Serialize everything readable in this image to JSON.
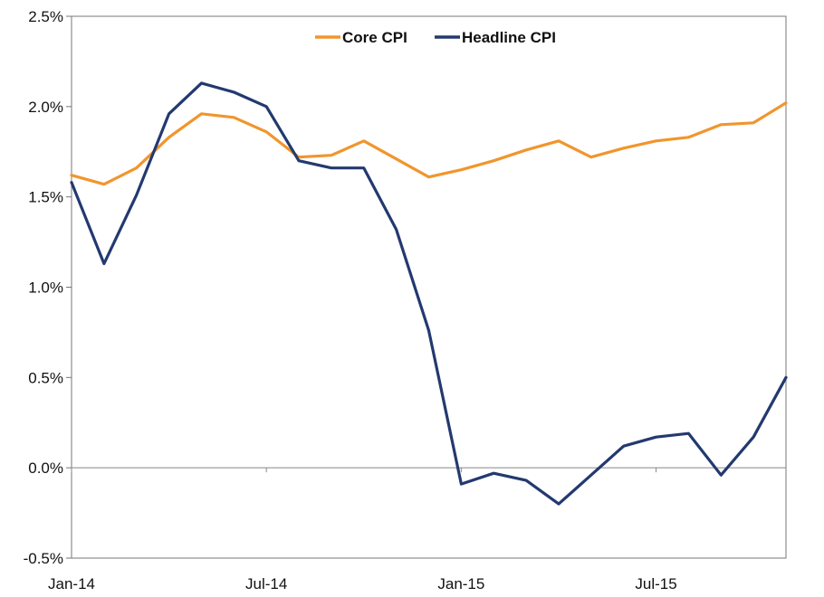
{
  "chart_data": {
    "type": "line",
    "title": "",
    "xlabel": "",
    "ylabel": "",
    "ylim": [
      -0.5,
      2.5
    ],
    "y_ticks": [
      "2.5%",
      "2.0%",
      "1.5%",
      "1.0%",
      "0.5%",
      "0.0%",
      "-0.5%"
    ],
    "y_tick_values": [
      2.5,
      2.0,
      1.5,
      1.0,
      0.5,
      0.0,
      -0.5
    ],
    "x": [
      "Jan-14",
      "Feb-14",
      "Mar-14",
      "Apr-14",
      "May-14",
      "Jun-14",
      "Jul-14",
      "Aug-14",
      "Sep-14",
      "Oct-14",
      "Nov-14",
      "Dec-14",
      "Jan-15",
      "Feb-15",
      "Mar-15",
      "Apr-15",
      "May-15",
      "Jun-15",
      "Jul-15",
      "Aug-15",
      "Sep-15",
      "Oct-15",
      "Nov-15"
    ],
    "x_tick_labels": [
      "Jan-14",
      "Jul-14",
      "Jan-15",
      "Jul-15"
    ],
    "grid": false,
    "legend_position": "top-center",
    "series": [
      {
        "name": "Core CPI",
        "color": "#F0962D",
        "values": [
          1.62,
          1.57,
          1.66,
          1.83,
          1.96,
          1.94,
          1.86,
          1.72,
          1.73,
          1.81,
          1.71,
          1.61,
          1.65,
          1.7,
          1.76,
          1.81,
          1.72,
          1.77,
          1.81,
          1.83,
          1.9,
          1.91,
          2.02
        ]
      },
      {
        "name": "Headline CPI",
        "color": "#23396F",
        "values": [
          1.58,
          1.13,
          1.51,
          1.96,
          2.13,
          2.08,
          2.0,
          1.7,
          1.66,
          1.66,
          1.32,
          0.76,
          -0.09,
          -0.03,
          -0.07,
          -0.2,
          -0.04,
          0.12,
          0.17,
          0.19,
          -0.04,
          0.17,
          0.5
        ]
      }
    ]
  }
}
